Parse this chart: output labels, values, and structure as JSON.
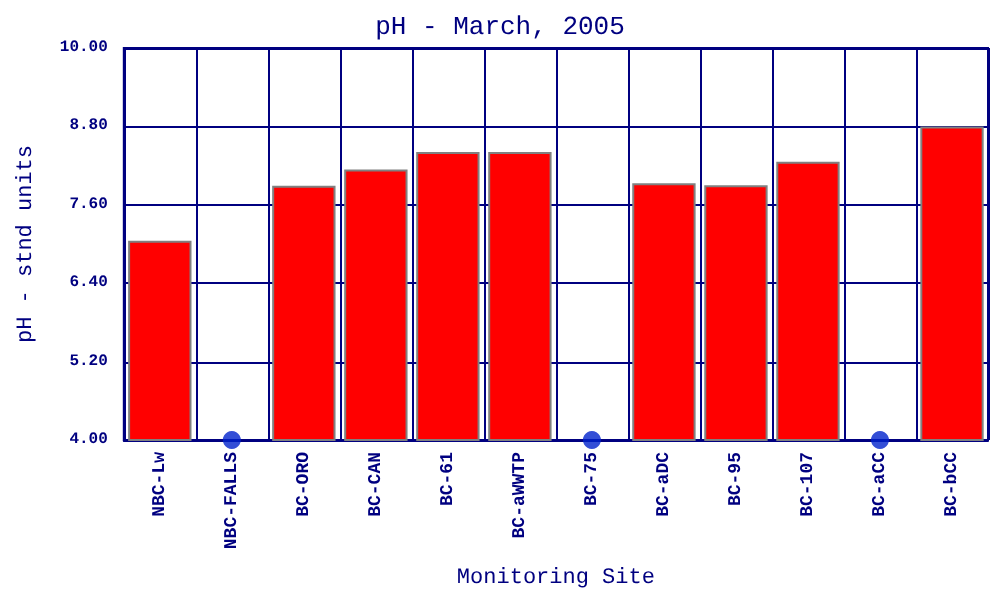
{
  "chart_data": {
    "type": "bar",
    "title": "pH - March, 2005",
    "xlabel": "Monitoring Site",
    "ylabel": "pH - stnd units",
    "categories": [
      "NBC-Lw",
      "NBC-FALLS",
      "BC-ORO",
      "BC-CAN",
      "BC-61",
      "BC-aWWTP",
      "BC-75",
      "BC-aDC",
      "BC-95",
      "BC-107",
      "BC-aCC",
      "BC-bCC"
    ],
    "series": [
      {
        "color": "#ff0000",
        "values": [
          7.05,
          null,
          7.89,
          8.14,
          8.41,
          8.41,
          null,
          7.93,
          7.9,
          8.26,
          null,
          8.8
        ]
      },
      {
        "type": "scatter",
        "color": "#0022cc",
        "x": [
          "NBC-FALLS",
          "BC-75",
          "BC-aCC"
        ],
        "values": [
          4,
          4,
          4
        ]
      }
    ],
    "ylim": [
      4,
      10
    ],
    "yticks": [
      {
        "value": 4,
        "label": "4.00"
      },
      {
        "value": 5.2,
        "label": "5.20"
      },
      {
        "value": 6.4,
        "label": "6.40"
      },
      {
        "value": 7.6,
        "label": "7.60"
      },
      {
        "value": 8.8,
        "label": "8.80"
      },
      {
        "value": 10,
        "label": "10.00"
      }
    ],
    "grid": true,
    "marker": "circle"
  }
}
